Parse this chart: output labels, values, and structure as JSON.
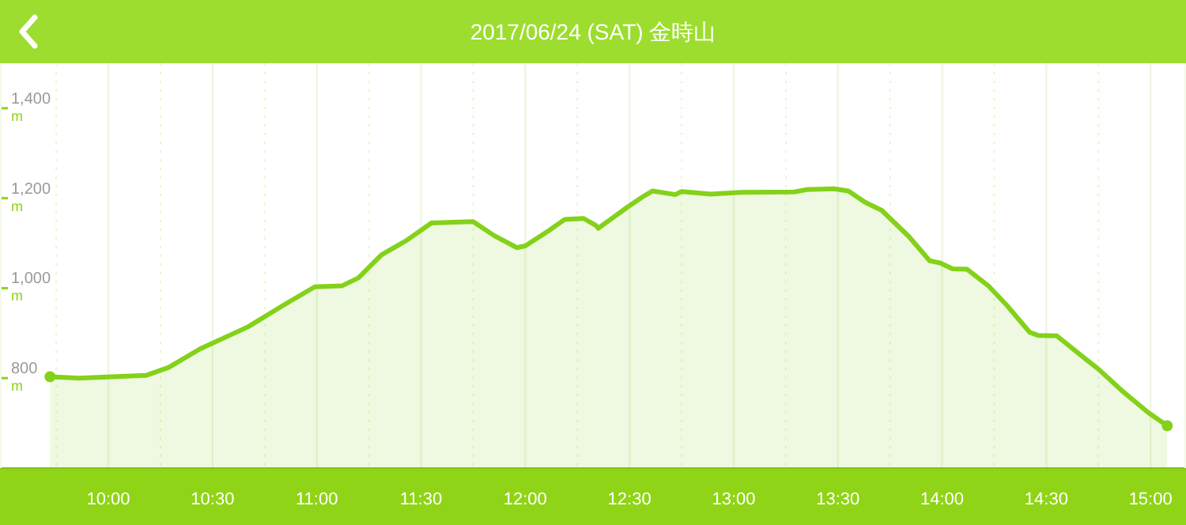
{
  "chart_data": {
    "type": "area",
    "title": "2017/06/24 (SAT) 金時山",
    "ylabel": "m",
    "series": [
      {
        "color": "#84d11a",
        "x": [
          9.72,
          9.86,
          10.18,
          10.29,
          10.44,
          10.67,
          10.84,
          10.99,
          11.12,
          11.2,
          11.31,
          11.43,
          11.55,
          11.75,
          11.85,
          11.96,
          12.0,
          12.11,
          12.19,
          12.28,
          12.34,
          12.35,
          12.49,
          12.56,
          12.61,
          12.72,
          12.75,
          12.89,
          13.04,
          13.29,
          13.35,
          13.48,
          13.55,
          13.63,
          13.71,
          13.84,
          13.94,
          13.99,
          14.05,
          14.12,
          14.22,
          14.31,
          14.42,
          14.46,
          14.55,
          14.66,
          14.75,
          14.86,
          14.99,
          15.08
        ],
        "values": [
          803,
          800,
          806,
          824,
          865,
          914,
          962,
          1003,
          1005,
          1023,
          1074,
          1106,
          1145,
          1148,
          1117,
          1090,
          1094,
          1127,
          1153,
          1155,
          1139,
          1133,
          1180,
          1202,
          1216,
          1208,
          1215,
          1209,
          1213,
          1214,
          1219,
          1221,
          1216,
          1191,
          1173,
          1115,
          1061,
          1056,
          1043,
          1042,
          1006,
          962,
          902,
          895,
          894,
          853,
          820,
          773,
          723,
          694
        ]
      }
    ],
    "xlim": [
      9.48,
      15.17
    ],
    "ylim": [
      600,
      1500
    ],
    "xticks": [
      {
        "value": 9.75,
        "label": null
      },
      {
        "value": 10,
        "label": "10:00"
      },
      {
        "value": 10.25,
        "label": null
      },
      {
        "value": 10.5,
        "label": "10:30"
      },
      {
        "value": 10.75,
        "label": null
      },
      {
        "value": 11,
        "label": "11:00"
      },
      {
        "value": 11.25,
        "label": null
      },
      {
        "value": 11.5,
        "label": "11:30"
      },
      {
        "value": 11.75,
        "label": null
      },
      {
        "value": 12,
        "label": "12:00"
      },
      {
        "value": 12.25,
        "label": null
      },
      {
        "value": 12.5,
        "label": "12:30"
      },
      {
        "value": 12.75,
        "label": null
      },
      {
        "value": 13,
        "label": "13:00"
      },
      {
        "value": 13.25,
        "label": null
      },
      {
        "value": 13.5,
        "label": "13:30"
      },
      {
        "value": 13.75,
        "label": null
      },
      {
        "value": 14,
        "label": "14:00"
      },
      {
        "value": 14.25,
        "label": null
      },
      {
        "value": 14.5,
        "label": "14:30"
      },
      {
        "value": 14.75,
        "label": null
      },
      {
        "value": 15,
        "label": "15:00"
      }
    ],
    "yticks": [
      {
        "value": 800,
        "label": "800"
      },
      {
        "value": 1000,
        "label": "1,000"
      },
      {
        "value": 1200,
        "label": "1,200"
      },
      {
        "value": 1400,
        "label": "1,400"
      }
    ],
    "grid": "x",
    "marker": "none",
    "line_style": "solid"
  }
}
